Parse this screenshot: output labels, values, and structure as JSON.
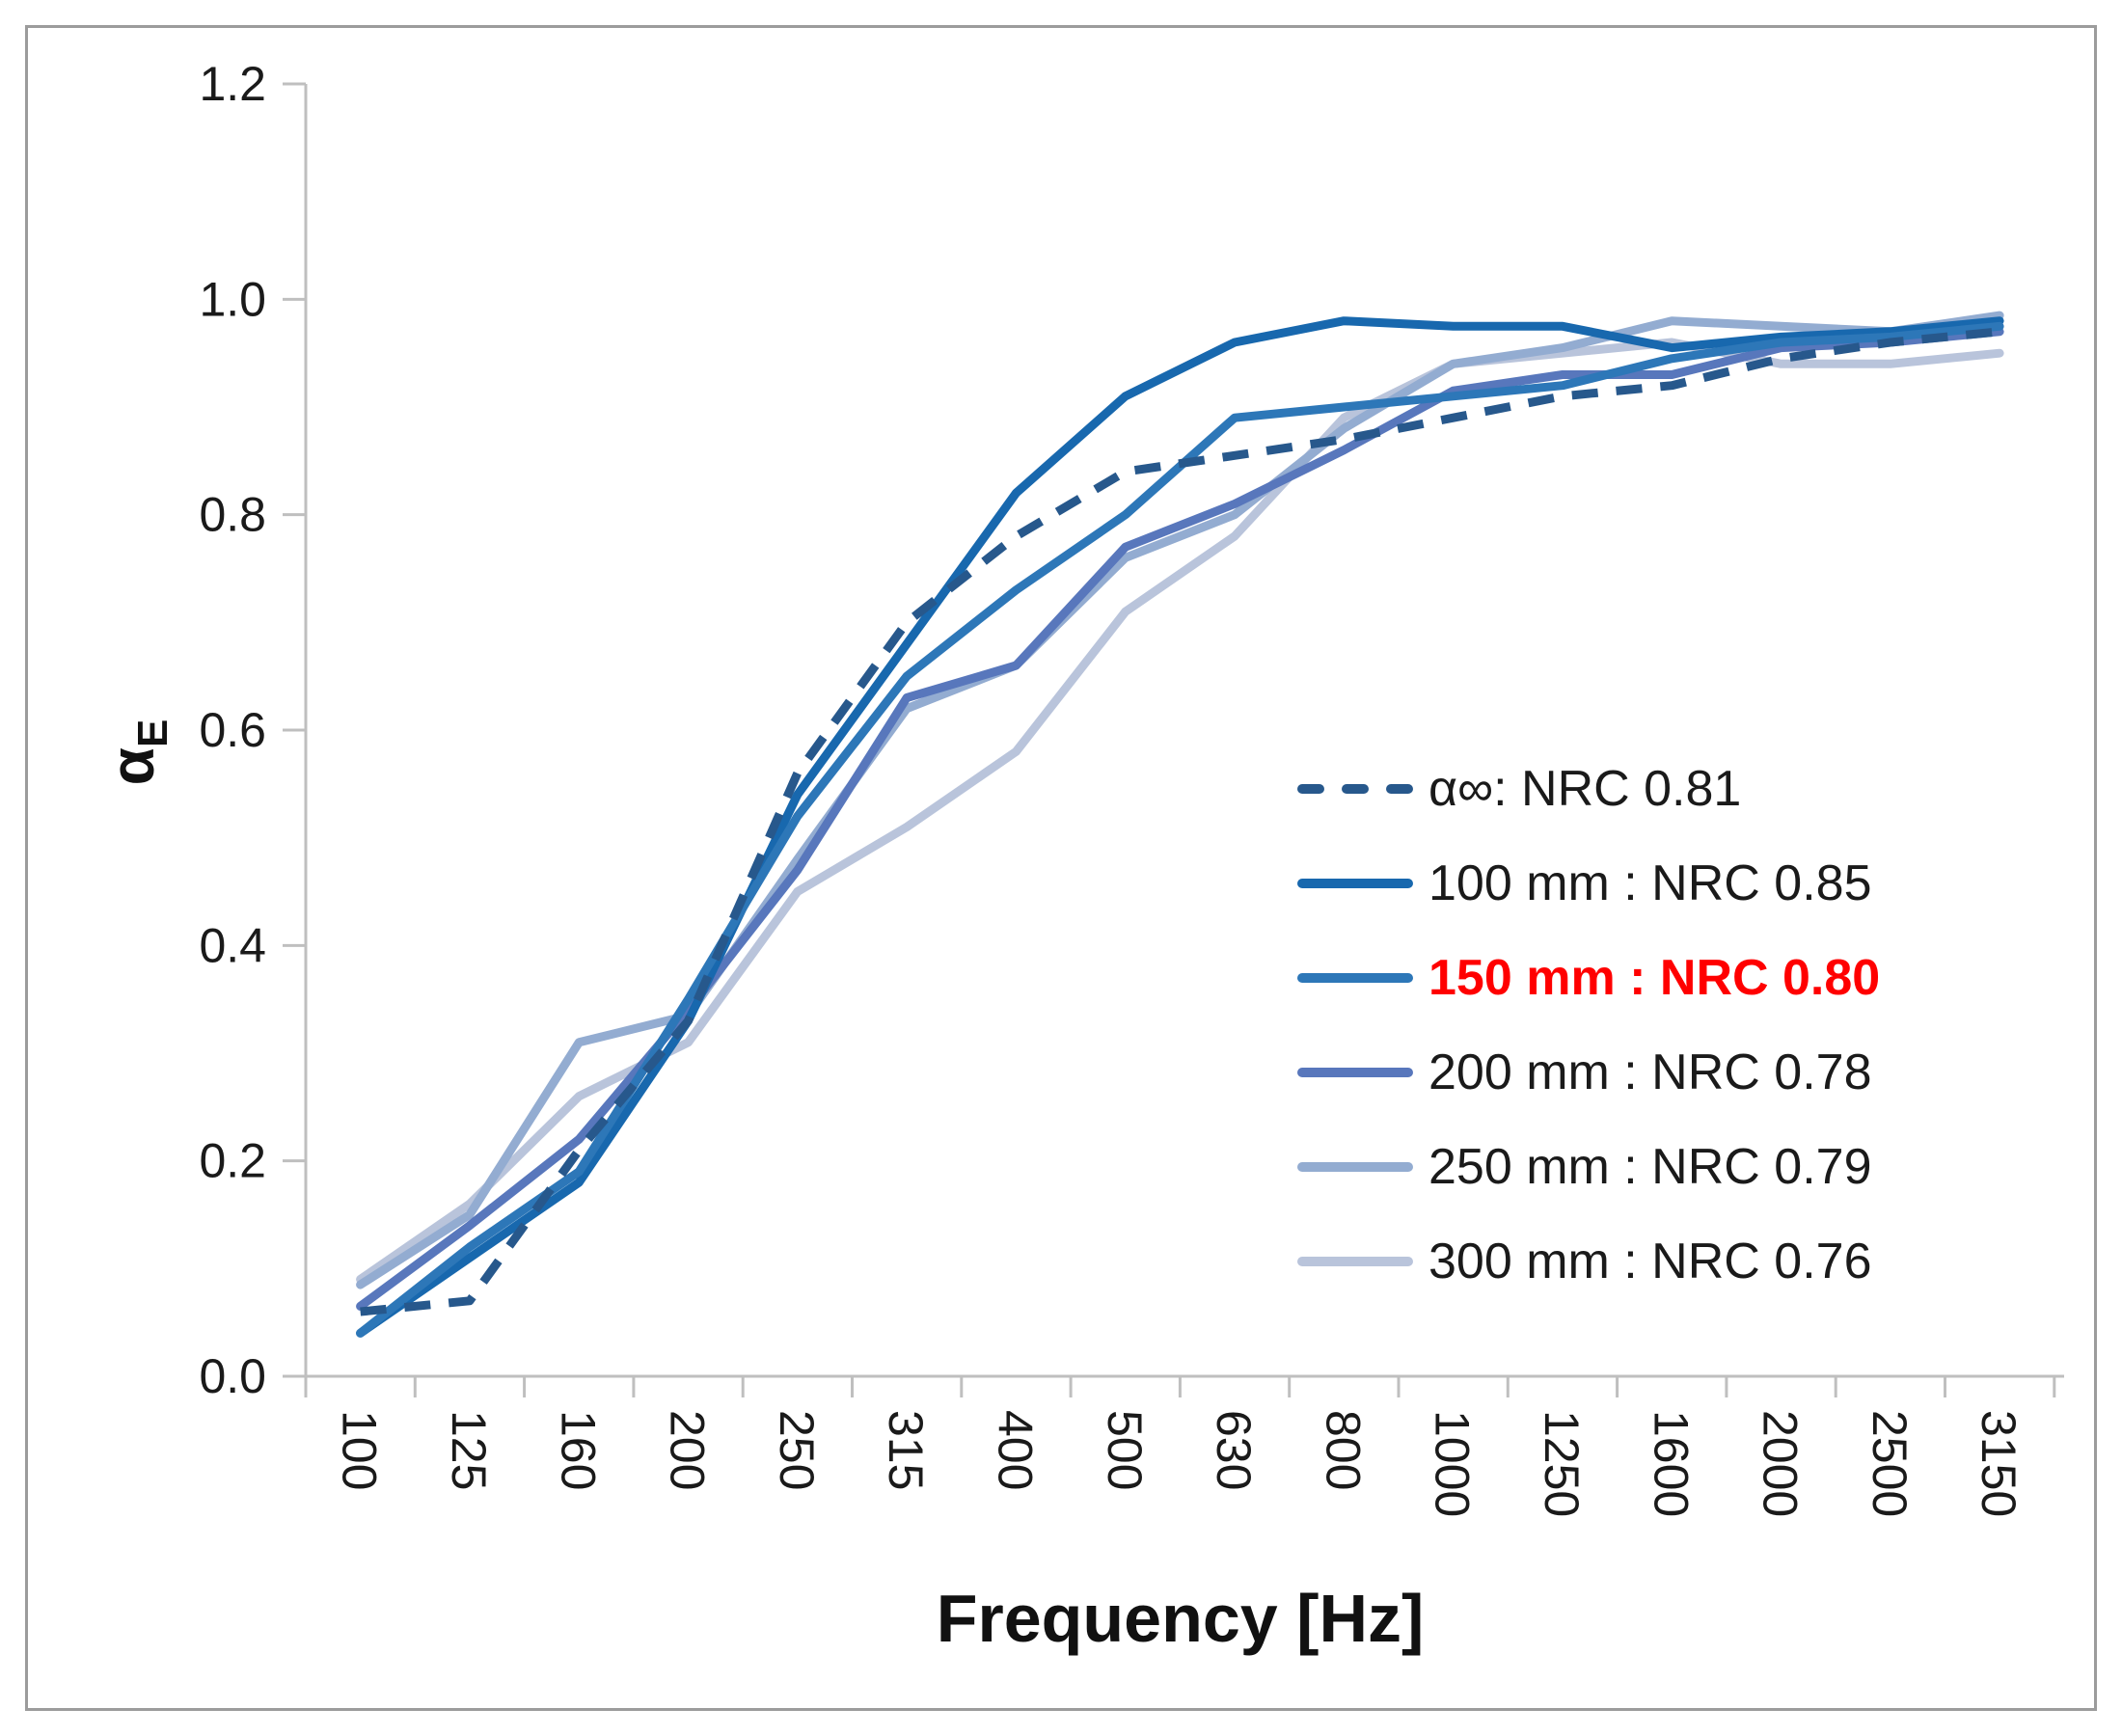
{
  "chart_data": {
    "type": "line",
    "title": "",
    "xlabel": "Frequency [Hz]",
    "ylabel": "αE",
    "ylabel_parts": {
      "main": "α",
      "sub": "E"
    },
    "x_categories": [
      "100",
      "125",
      "160",
      "200",
      "250",
      "315",
      "400",
      "500",
      "630",
      "800",
      "1000",
      "1250",
      "1600",
      "2000",
      "2500",
      "3150"
    ],
    "ylim": [
      0.0,
      1.2
    ],
    "ytick_labels": [
      "0.0",
      "0.2",
      "0.4",
      "0.6",
      "0.8",
      "1.0",
      "1.2"
    ],
    "grid": false,
    "legend_position": "inside-right",
    "axis_color": "#BFBFBF",
    "frame_color": "#9C9C9C",
    "text_color": "#1a1a1a",
    "highlight_color": "#FF0000",
    "series": [
      {
        "key": "alpha-inf",
        "label": "α∞: NRC 0.81",
        "nrc": 0.81,
        "style": "dashed",
        "color": "#27588C",
        "emphasis": false,
        "values": [
          0.06,
          0.07,
          0.21,
          0.33,
          0.56,
          0.7,
          0.78,
          0.84,
          0.855,
          0.87,
          0.89,
          0.91,
          0.92,
          0.945,
          0.96,
          0.97
        ]
      },
      {
        "key": "100-mm",
        "label": "100 mm : NRC 0.85",
        "nrc": 0.85,
        "style": "solid",
        "color": "#1868AE",
        "emphasis": false,
        "values": [
          0.04,
          0.11,
          0.18,
          0.33,
          0.54,
          0.68,
          0.82,
          0.91,
          0.96,
          0.98,
          0.975,
          0.975,
          0.955,
          0.965,
          0.97,
          0.98
        ]
      },
      {
        "key": "150-mm",
        "label": "150 mm : NRC 0.80",
        "nrc": 0.8,
        "style": "solid",
        "color": "#2D77B8",
        "emphasis": true,
        "values": [
          0.04,
          0.12,
          0.19,
          0.35,
          0.52,
          0.65,
          0.73,
          0.8,
          0.89,
          0.9,
          0.91,
          0.92,
          0.945,
          0.96,
          0.965,
          0.975
        ]
      },
      {
        "key": "200-mm",
        "label": "200 mm : NRC 0.78",
        "nrc": 0.78,
        "style": "solid",
        "color": "#5877BC",
        "emphasis": false,
        "values": [
          0.065,
          0.14,
          0.22,
          0.34,
          0.47,
          0.63,
          0.66,
          0.77,
          0.81,
          0.86,
          0.915,
          0.93,
          0.93,
          0.955,
          0.96,
          0.97
        ]
      },
      {
        "key": "250-mm",
        "label": "250 mm : NRC 0.79",
        "nrc": 0.79,
        "style": "solid",
        "color": "#93ACD1",
        "emphasis": false,
        "values": [
          0.085,
          0.15,
          0.31,
          0.335,
          0.48,
          0.62,
          0.66,
          0.76,
          0.8,
          0.88,
          0.94,
          0.955,
          0.98,
          0.975,
          0.97,
          0.985
        ]
      },
      {
        "key": "300-mm",
        "label": "300 mm : NRC 0.76",
        "nrc": 0.76,
        "style": "solid",
        "color": "#B9C4DB",
        "emphasis": false,
        "values": [
          0.09,
          0.16,
          0.26,
          0.31,
          0.45,
          0.51,
          0.58,
          0.71,
          0.78,
          0.89,
          0.94,
          0.95,
          0.96,
          0.94,
          0.94,
          0.95
        ]
      }
    ]
  }
}
